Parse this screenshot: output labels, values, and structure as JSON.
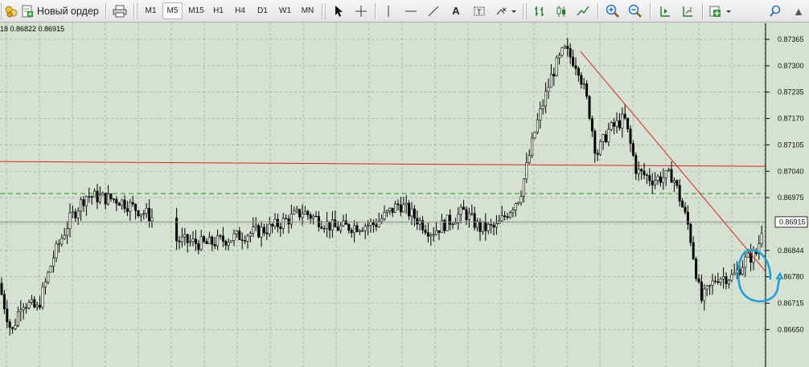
{
  "toolbar": {
    "new_order_label": "Новый ордер",
    "timeframes": [
      "M1",
      "M5",
      "M15",
      "H1",
      "H4",
      "D1",
      "W1",
      "MN"
    ],
    "active_timeframe": "M5",
    "text_tool_label": "A",
    "icons": [
      "tools-icon",
      "new-order-icon",
      "print-icon",
      "cursor-icon",
      "crosshair-icon",
      "hline-icon",
      "trendline-icon",
      "text-icon",
      "label-icon",
      "arrows-icon",
      "bar-chart-icon",
      "candle-chart-icon",
      "line-chart-icon",
      "zoom-in-icon",
      "zoom-out-icon",
      "autoscroll-icon",
      "chart-shift-icon",
      "indicators-icon",
      "search-icon"
    ]
  },
  "chart": {
    "ohlc_text": "18 0.86822 0.86915",
    "current_price_label": "0.86915",
    "colors": {
      "background": "#d5e2d2",
      "grid": "#8c9a8a",
      "candle": "#000000",
      "h_line": "#d9261c",
      "dashed_line": "#1a9a1a",
      "annotation": "#1ea0d8"
    }
  },
  "chart_data": {
    "type": "candlestick",
    "price_scale": [
      "0.87365",
      "0.87300",
      "0.87235",
      "0.87170",
      "0.87105",
      "0.87040",
      "0.86975",
      "0.86915",
      "0.86844",
      "0.86780",
      "0.86715",
      "0.86650"
    ],
    "ylim": [
      0.8662,
      0.8741
    ],
    "current_price": 0.86915,
    "horizontal_line_price": 0.87058,
    "dashed_level_price": 0.86985,
    "trendline": {
      "from_price": 0.87335,
      "to_price": 0.86765
    },
    "annotation": "blue circle around recent candles"
  }
}
